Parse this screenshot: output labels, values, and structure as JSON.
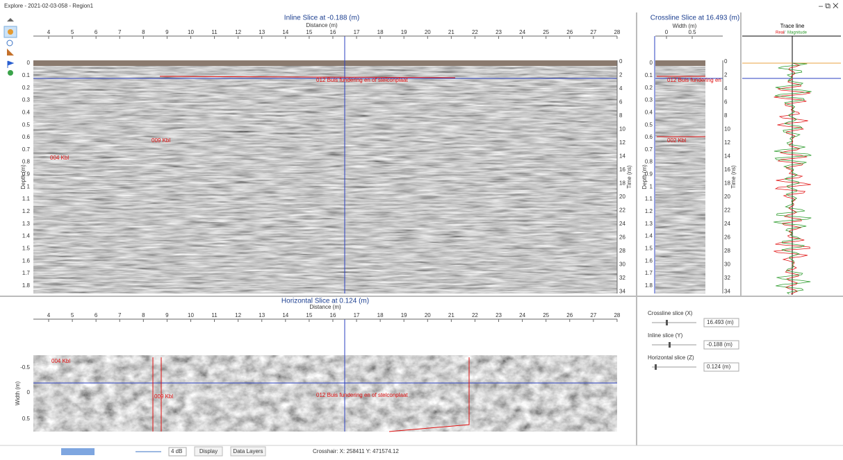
{
  "window": {
    "title": "Explore - 2021-02-03-058 - Region1"
  },
  "inline_slice": {
    "title": "Inline Slice at -0.188 (m)",
    "x_label": "Distance (m)",
    "x_ticks": [
      4,
      5,
      6,
      7,
      8,
      9,
      10,
      11,
      12,
      13,
      14,
      15,
      16,
      17,
      18,
      19,
      20,
      21,
      22,
      23,
      24,
      25,
      26,
      27,
      28
    ],
    "depth_label": "Depth (m)",
    "depth_ticks": [
      0,
      0.1,
      0.2,
      0.3,
      0.4,
      0.5,
      0.6,
      0.7,
      0.8,
      0.9,
      1,
      1.1,
      1.2,
      1.3,
      1.4,
      1.5,
      1.6,
      1.7,
      1.8
    ],
    "time_label": "Time (ns)",
    "time_ticks": [
      0,
      2,
      4,
      6,
      8,
      10,
      12,
      14,
      16,
      18,
      20,
      22,
      24,
      26,
      28,
      30,
      32,
      34
    ],
    "annotations": [
      "012 Buis fundering en of stelconplaat",
      "009 Kbl",
      "004 Kbl"
    ]
  },
  "crossline_slice": {
    "title": "Crossline Slice at 16.493 (m)",
    "x_label": "Width (m)",
    "x_ticks": [
      0,
      0.5
    ],
    "depth_label": "Depth (m)",
    "time_label": "Time (ns)",
    "annotations": [
      "012 Buis fundering en",
      "002 Kbl"
    ]
  },
  "trace": {
    "title": "Trace line",
    "legend_real": "Real",
    "legend_sep": "/",
    "legend_magnitude": "Magnitude"
  },
  "horizontal_slice": {
    "title": "Horizontal Slice at 0.124 (m)",
    "x_label": "Distance (m)",
    "y_label": "Width (m)",
    "y_ticks": [
      -0.5,
      0,
      0.5
    ],
    "annotations": [
      "004 Kbl",
      "009 Kbl",
      "012 Buis fundering en of stelconplaat"
    ]
  },
  "controls": [
    {
      "label": "Crossline slice (X)",
      "value": "16.493 (m)"
    },
    {
      "label": "Inline slice (Y)",
      "value": "-0.188 (m)"
    },
    {
      "label": "Horizontal slice (Z)",
      "value": "0.124 (m)"
    }
  ],
  "toolbar": {
    "gain": "4 dB",
    "display": "Display",
    "data_layers": "Data Layers",
    "crosshair": "Crosshair: X: 258411 Y: 471574.12"
  }
}
